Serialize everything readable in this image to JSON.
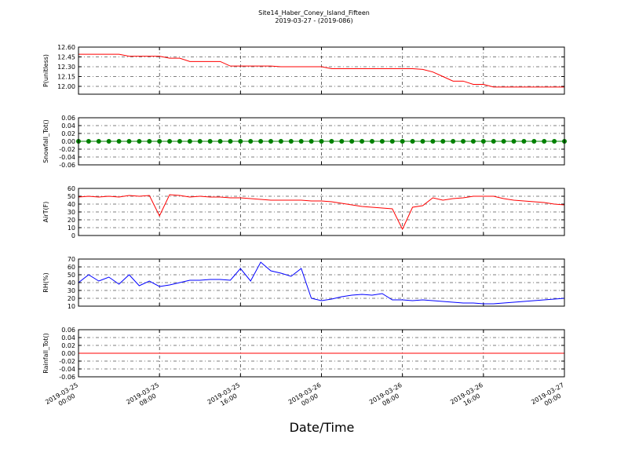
{
  "chart_data": {
    "type": "line",
    "title": "Site14_Haber_Coney_Island_Fifteen",
    "subtitle": "2019-03-27 - (2019-086)",
    "xlabel": "Date/Time",
    "grid": true,
    "x": [
      "2019-03-25 00:00",
      "2019-03-25 01:00",
      "2019-03-25 02:00",
      "2019-03-25 03:00",
      "2019-03-25 04:00",
      "2019-03-25 05:00",
      "2019-03-25 06:00",
      "2019-03-25 07:00",
      "2019-03-25 08:00",
      "2019-03-25 09:00",
      "2019-03-25 10:00",
      "2019-03-25 11:00",
      "2019-03-25 12:00",
      "2019-03-25 13:00",
      "2019-03-25 14:00",
      "2019-03-25 15:00",
      "2019-03-25 16:00",
      "2019-03-25 17:00",
      "2019-03-25 18:00",
      "2019-03-25 19:00",
      "2019-03-25 20:00",
      "2019-03-25 21:00",
      "2019-03-25 22:00",
      "2019-03-25 23:00",
      "2019-03-26 00:00",
      "2019-03-26 01:00",
      "2019-03-26 02:00",
      "2019-03-26 03:00",
      "2019-03-26 04:00",
      "2019-03-26 05:00",
      "2019-03-26 06:00",
      "2019-03-26 07:00",
      "2019-03-26 08:00",
      "2019-03-26 09:00",
      "2019-03-26 10:00",
      "2019-03-26 11:00",
      "2019-03-26 12:00",
      "2019-03-26 13:00",
      "2019-03-26 14:00",
      "2019-03-26 15:00",
      "2019-03-26 16:00",
      "2019-03-26 17:00",
      "2019-03-26 18:00",
      "2019-03-26 19:00",
      "2019-03-26 20:00",
      "2019-03-26 21:00",
      "2019-03-26 22:00",
      "2019-03-26 23:00",
      "2019-03-27 00:00"
    ],
    "xlim": [
      "2019-03-25 00:00",
      "2019-03-27 00:00"
    ],
    "xticks": [
      {
        "value": "2019-03-25 00:00",
        "label": [
          "2019-03-25",
          "00:00"
        ]
      },
      {
        "value": "2019-03-25 08:00",
        "label": [
          "2019-03-25",
          "08:00"
        ]
      },
      {
        "value": "2019-03-25 16:00",
        "label": [
          "2019-03-25",
          "16:00"
        ]
      },
      {
        "value": "2019-03-26 00:00",
        "label": [
          "2019-03-26",
          "00:00"
        ]
      },
      {
        "value": "2019-03-26 08:00",
        "label": [
          "2019-03-26",
          "08:00"
        ]
      },
      {
        "value": "2019-03-26 16:00",
        "label": [
          "2019-03-26",
          "16:00"
        ]
      },
      {
        "value": "2019-03-27 00:00",
        "label": [
          "2019-03-27",
          "00:00"
        ]
      }
    ],
    "panels": [
      {
        "ylabel": "P(unitless)",
        "ylim": [
          11.88,
          12.6
        ],
        "yticks": [
          {
            "value": 12.0,
            "label": "12.00"
          },
          {
            "value": 12.15,
            "label": "12.15"
          },
          {
            "value": 12.3,
            "label": "12.30"
          },
          {
            "value": 12.45,
            "label": "12.45"
          },
          {
            "value": 12.6,
            "label": "12.60"
          }
        ],
        "series": [
          {
            "color": "#ff0000",
            "values": [
              12.49,
              12.49,
              12.49,
              12.49,
              12.49,
              12.46,
              12.46,
              12.46,
              12.46,
              12.43,
              12.43,
              12.38,
              12.38,
              12.38,
              12.38,
              12.31,
              12.31,
              12.31,
              12.31,
              12.31,
              12.3,
              12.3,
              12.3,
              12.3,
              12.3,
              12.27,
              12.27,
              12.27,
              12.27,
              12.27,
              12.27,
              12.27,
              12.27,
              12.27,
              12.26,
              12.22,
              12.15,
              12.08,
              12.08,
              12.03,
              12.03,
              11.99,
              11.99,
              11.99,
              11.99,
              11.99,
              11.99,
              11.99,
              11.99
            ]
          }
        ]
      },
      {
        "ylabel": "Snowfall_Tot()",
        "ylim": [
          -0.06,
          0.06
        ],
        "yticks": [
          {
            "value": -0.06,
            "label": "-0.06"
          },
          {
            "value": -0.04,
            "label": "-0.04"
          },
          {
            "value": -0.02,
            "label": "-0.02"
          },
          {
            "value": 0,
            "label": "0.00"
          },
          {
            "value": 0.02,
            "label": "0.02"
          },
          {
            "value": 0.04,
            "label": "0.04"
          },
          {
            "value": 0.06,
            "label": "0.06"
          }
        ],
        "series": [
          {
            "color": "#008000",
            "marker": true,
            "values": [
              0,
              0,
              0,
              0,
              0,
              0,
              0,
              0,
              0,
              0,
              0,
              0,
              0,
              0,
              0,
              0,
              0,
              0,
              0,
              0,
              0,
              0,
              0,
              0,
              0,
              0,
              0,
              0,
              0,
              0,
              0,
              0,
              0,
              0,
              0,
              0,
              0,
              0,
              0,
              0,
              0,
              0,
              0,
              0,
              0,
              0,
              0,
              0,
              0
            ]
          }
        ]
      },
      {
        "ylabel": "AirT(F)",
        "ylim": [
          0,
          60
        ],
        "yticks": [
          0,
          10,
          20,
          30,
          40,
          50,
          60
        ],
        "series": [
          {
            "color": "#ff0000",
            "values": [
              49,
              50,
              49,
              50,
              49,
              51,
              50,
              51,
              25,
              52,
              51,
              49,
              50,
              49,
              49,
              48,
              48,
              47,
              46,
              45,
              45,
              45,
              45,
              44,
              44,
              43,
              41,
              39,
              37,
              36,
              35,
              34,
              8,
              36,
              38,
              48,
              45,
              47,
              48,
              50,
              50,
              50,
              47,
              45,
              44,
              43,
              42,
              40,
              39
            ]
          }
        ]
      },
      {
        "ylabel": "RH(%)",
        "ylim": [
          10,
          70
        ],
        "yticks": [
          10,
          20,
          30,
          40,
          50,
          60,
          70
        ],
        "series": [
          {
            "color": "#0000ff",
            "values": [
              40,
              50,
              42,
              47,
              38,
              50,
              36,
              42,
              35,
              37,
              40,
              43,
              43,
              44,
              44,
              43,
              58,
              42,
              66,
              55,
              52,
              48,
              58,
              20,
              17,
              19,
              22,
              24,
              25,
              24,
              26,
              18,
              18,
              17,
              18,
              17,
              16,
              15,
              14,
              14,
              13,
              13,
              14,
              15,
              16,
              17,
              18,
              19,
              20
            ]
          }
        ]
      },
      {
        "ylabel": "Rainfall_Tot()",
        "ylim": [
          -0.06,
          0.06
        ],
        "yticks": [
          {
            "value": -0.06,
            "label": "-0.06"
          },
          {
            "value": -0.04,
            "label": "-0.04"
          },
          {
            "value": -0.02,
            "label": "-0.02"
          },
          {
            "value": 0,
            "label": "0.00"
          },
          {
            "value": 0.02,
            "label": "0.02"
          },
          {
            "value": 0.04,
            "label": "0.04"
          },
          {
            "value": 0.06,
            "label": "0.06"
          }
        ],
        "series": [
          {
            "color": "#ff0000",
            "values": [
              0,
              0,
              0,
              0,
              0,
              0,
              0,
              0,
              0,
              0,
              0,
              0,
              0,
              0,
              0,
              0,
              0,
              0,
              0,
              0,
              0,
              0,
              0,
              0,
              0,
              0,
              0,
              0,
              0,
              0,
              0,
              0,
              0,
              0,
              0,
              0,
              0,
              0,
              0,
              0,
              0,
              0,
              0,
              0,
              0,
              0,
              0,
              0,
              0
            ]
          }
        ]
      }
    ]
  }
}
